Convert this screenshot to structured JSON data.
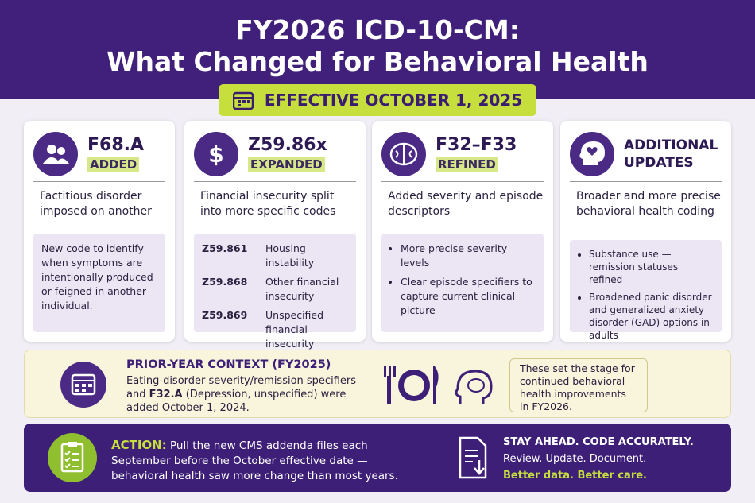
{
  "header": {
    "title_line1": "FY2026 ICD-10-CM:",
    "title_line2": "What Changed for Behavioral Health",
    "effective": "EFFECTIVE OCTOBER 1, 2025"
  },
  "cards": [
    {
      "code": "F68.A",
      "status": "ADDED",
      "summary": "Factitious disorder imposed on another",
      "detail": "New code to identify when symptoms are intentionally produced or feigned in another individual."
    },
    {
      "code": "Z59.86x",
      "status": "EXPANDED",
      "summary": "Financial insecurity split into more specific codes",
      "codes": [
        {
          "code": "Z59.861",
          "label": "Housing instability"
        },
        {
          "code": "Z59.868",
          "label": "Other financial insecurity"
        },
        {
          "code": "Z59.869",
          "label": "Unspecified financial insecurity"
        }
      ]
    },
    {
      "code": "F32–F33",
      "status": "REFINED",
      "summary": "Added severity and episode descriptors",
      "bullets": [
        "More precise severity levels",
        "Clear episode specifiers to capture current clinical picture"
      ]
    },
    {
      "title": "ADDITIONAL UPDATES",
      "summary": "Broader and more precise behavioral health coding",
      "bullets": [
        "Substance use — remission statuses refined",
        "Broadened panic disorder and generalized anxiety disorder (GAD) options in adults"
      ]
    }
  ],
  "context": {
    "title": "PRIOR-YEAR CONTEXT (FY2025)",
    "text_before": "Eating-disorder severity/remission specifiers and",
    "highlight": "F32.A",
    "text_after": "(Depression, unspecified) were added October 1, 2024.",
    "note": "These set the stage for continued behavioral health improvements in FY2026."
  },
  "action": {
    "label": "ACTION:",
    "text": "Pull the new CMS addenda files each September before the October effective date — behavioral health saw more change than most years.",
    "tagline": "STAY AHEAD. CODE ACCURATELY.",
    "steps": "Review. Update. Document.",
    "slogan": "Better data. Better care."
  }
}
